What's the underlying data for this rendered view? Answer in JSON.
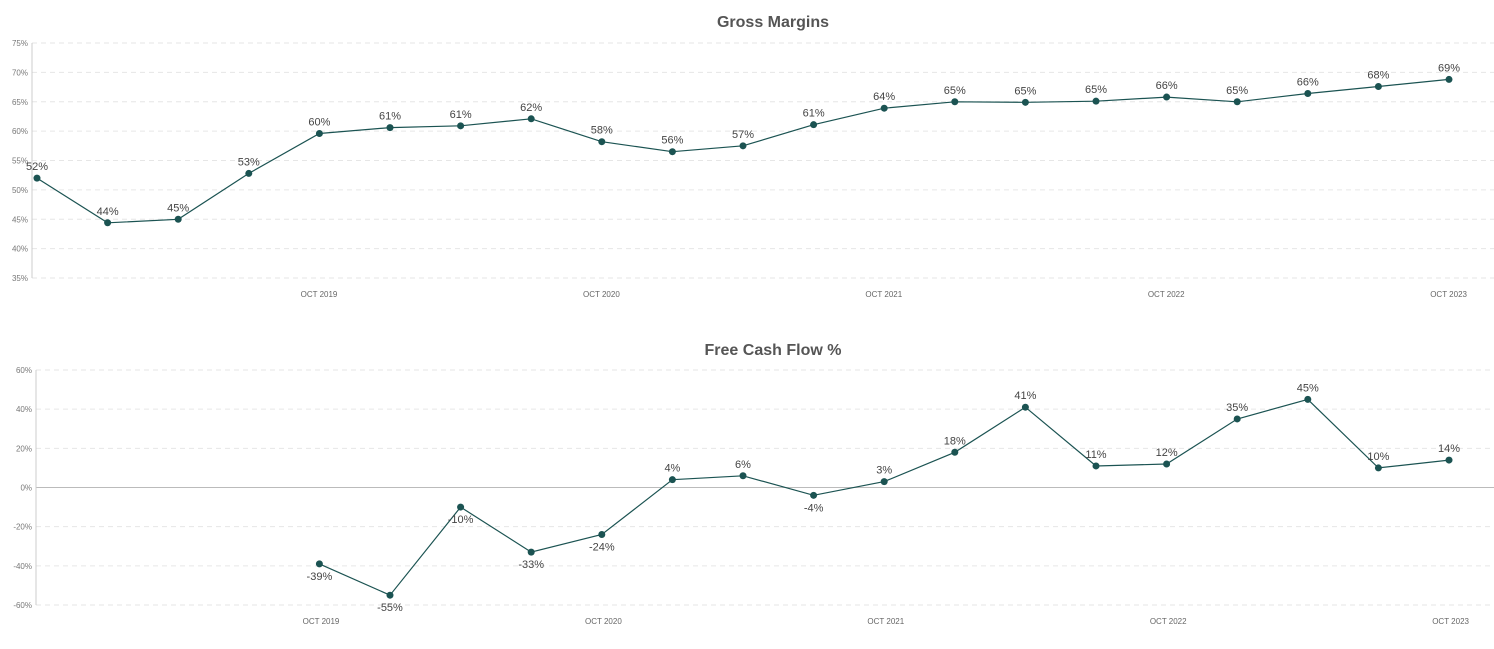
{
  "chart_data": [
    {
      "type": "line",
      "title": "Gross Margins",
      "ylim": [
        35,
        75
      ],
      "yticks": [
        35,
        40,
        45,
        50,
        55,
        60,
        65,
        70,
        75
      ],
      "ytick_labels": [
        "35%",
        "40%",
        "45%",
        "50%",
        "55%",
        "60%",
        "65%",
        "70%",
        "75%"
      ],
      "x_tick_labels": [
        "OCT 2019",
        "OCT 2020",
        "OCT 2021",
        "OCT 2022",
        "OCT 2023"
      ],
      "grid": true,
      "color": "#1b5352",
      "series": [
        {
          "values": [
            52,
            44.4,
            45,
            52.8,
            59.6,
            60.6,
            60.9,
            62.1,
            58.2,
            56.5,
            57.5,
            61.1,
            63.9,
            65,
            64.9,
            65.1,
            65.8,
            65,
            66.4,
            67.6,
            68.8
          ],
          "labels": [
            "52%",
            "44%",
            "45%",
            "53%",
            "60%",
            "61%",
            "61%",
            "62%",
            "58%",
            "56%",
            "57%",
            "61%",
            "64%",
            "65%",
            "65%",
            "65%",
            "66%",
            "65%",
            "66%",
            "68%",
            "69%"
          ]
        }
      ]
    },
    {
      "type": "line",
      "title": "Free Cash Flow %",
      "ylim": [
        -60,
        60
      ],
      "yticks": [
        -60,
        -40,
        -20,
        0,
        20,
        40,
        60
      ],
      "ytick_labels": [
        "-60%",
        "-40%",
        "-20%",
        "0%",
        "20%",
        "40%",
        "60%"
      ],
      "x_tick_labels": [
        "OCT 2019",
        "OCT 2020",
        "OCT 2021",
        "OCT 2022",
        "OCT 2023"
      ],
      "grid": true,
      "color": "#1b5352",
      "series": [
        {
          "values": [
            null,
            null,
            null,
            null,
            -39,
            -55,
            -10,
            -33,
            -24,
            4,
            6,
            -4,
            3,
            18,
            41,
            11,
            12,
            35,
            45,
            10,
            14
          ],
          "labels": [
            "",
            "",
            "",
            "",
            "-39%",
            "-55%",
            "-10%",
            "-33%",
            "-24%",
            "4%",
            "6%",
            "-4%",
            "3%",
            "18%",
            "41%",
            "11%",
            "12%",
            "35%",
            "45%",
            "10%",
            "14%"
          ]
        }
      ]
    }
  ]
}
